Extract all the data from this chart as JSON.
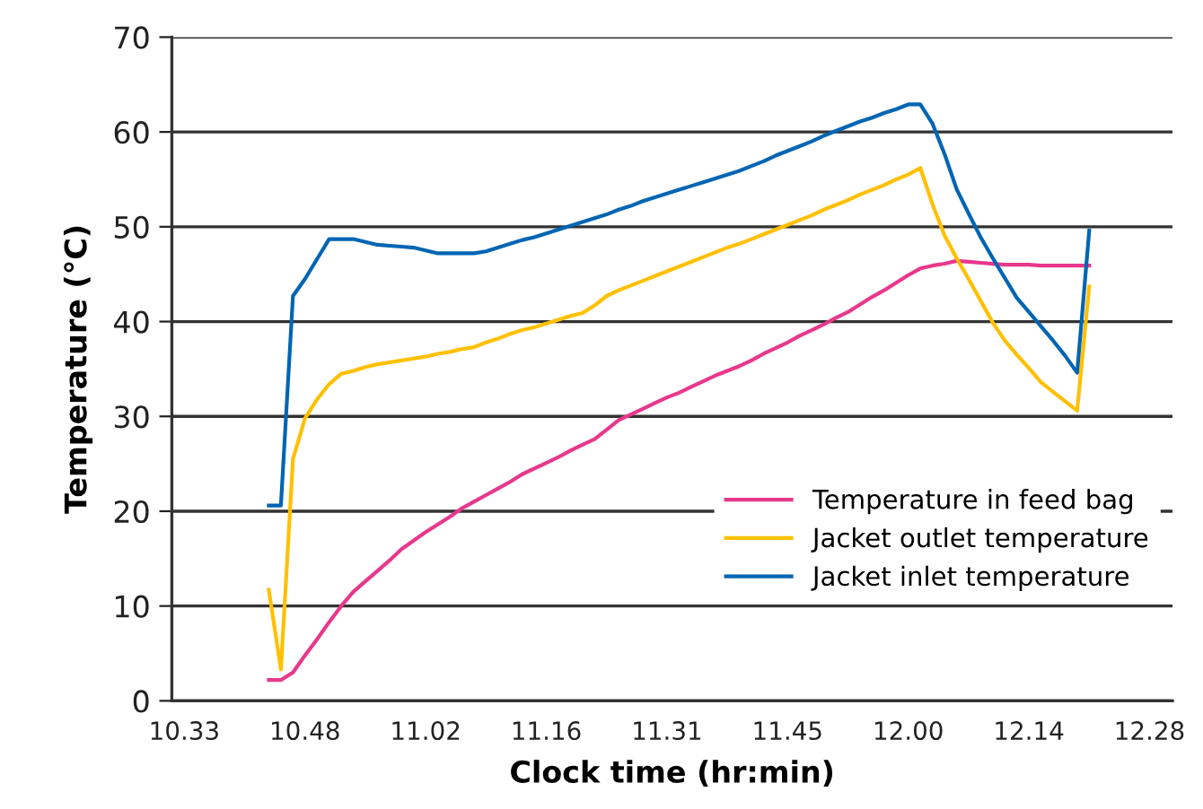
{
  "chart_data": {
    "type": "line",
    "xlabel": "Clock time (hr:min)",
    "ylabel": "Temperature (°C)",
    "categories": [
      "10.33",
      null,
      null,
      null,
      null,
      null,
      null,
      null,
      null,
      null,
      "10.48",
      null,
      null,
      null,
      null,
      null,
      null,
      null,
      null,
      null,
      "11.02",
      null,
      null,
      null,
      null,
      null,
      null,
      null,
      null,
      null,
      "11.16",
      null,
      null,
      null,
      null,
      null,
      null,
      null,
      null,
      null,
      "11.31",
      null,
      null,
      null,
      null,
      null,
      null,
      null,
      null,
      null,
      "11.45",
      null,
      null,
      null,
      null,
      null,
      null,
      null,
      null,
      null,
      "12.00",
      null,
      null,
      null,
      null,
      null,
      null,
      null,
      null,
      null,
      "12.14",
      null,
      null,
      null,
      null,
      null,
      null,
      null,
      null,
      null,
      "12.28",
      null,
      null
    ],
    "ylim": [
      0,
      70
    ],
    "yticks": [
      0,
      10,
      20,
      30,
      40,
      50,
      60,
      70
    ],
    "grid": "y",
    "legend": "lower right",
    "marker": "none",
    "line_style": "solid",
    "series": [
      {
        "name": "Temperature in feed bag",
        "color": "#e8388c",
        "values": [
          null,
          null,
          null,
          null,
          null,
          null,
          null,
          2.2,
          2.2,
          3.0,
          4.8,
          6.5,
          8.3,
          10.0,
          11.5,
          12.6,
          13.7,
          14.8,
          16.0,
          16.9,
          17.8,
          18.6,
          19.4,
          20.3,
          21.0,
          21.7,
          22.4,
          23.1,
          23.9,
          24.5,
          25.1,
          25.7,
          26.4,
          27.0,
          27.6,
          28.6,
          29.6,
          30.2,
          30.8,
          31.4,
          32.0,
          32.5,
          33.1,
          33.7,
          34.3,
          34.8,
          35.3,
          35.9,
          36.6,
          37.2,
          37.8,
          38.5,
          39.1,
          39.7,
          40.4,
          41.0,
          41.8,
          42.6,
          43.3,
          44.1,
          44.9,
          45.6,
          45.9,
          46.1,
          46.4,
          46.3,
          46.2,
          46.1,
          46.0,
          46.0,
          46.0,
          45.9,
          45.9,
          45.9,
          45.9,
          45.9,
          null,
          null,
          null,
          null,
          null,
          null,
          null
        ]
      },
      {
        "name": "Jacket outlet temperature",
        "color": "#ffc000",
        "values": [
          null,
          null,
          null,
          null,
          null,
          null,
          null,
          11.7,
          3.3,
          25.5,
          29.8,
          31.8,
          33.4,
          34.5,
          34.8,
          35.2,
          35.5,
          35.7,
          35.9,
          36.1,
          36.3,
          36.6,
          36.8,
          37.1,
          37.3,
          37.8,
          38.2,
          38.7,
          39.1,
          39.4,
          39.8,
          40.2,
          40.6,
          40.9,
          41.7,
          42.7,
          43.3,
          43.8,
          44.3,
          44.8,
          45.3,
          45.8,
          46.3,
          46.8,
          47.3,
          47.8,
          48.2,
          48.7,
          49.2,
          49.7,
          50.2,
          50.7,
          51.2,
          51.8,
          52.3,
          52.8,
          53.4,
          53.9,
          54.4,
          55.0,
          55.5,
          56.2,
          52.4,
          49.1,
          46.7,
          44.5,
          42.2,
          39.9,
          38.0,
          36.5,
          35.1,
          33.6,
          32.6,
          31.6,
          30.6,
          43.7,
          null,
          null,
          null,
          null,
          null,
          null,
          null
        ]
      },
      {
        "name": "Jacket inlet temperature",
        "color": "#0065b3",
        "values": [
          null,
          null,
          null,
          null,
          null,
          null,
          null,
          20.6,
          20.6,
          42.7,
          44.5,
          46.6,
          48.7,
          48.7,
          48.7,
          48.4,
          48.1,
          48.0,
          47.9,
          47.8,
          47.5,
          47.2,
          47.2,
          47.2,
          47.2,
          47.4,
          47.8,
          48.2,
          48.6,
          48.9,
          49.3,
          49.7,
          50.1,
          50.5,
          50.9,
          51.3,
          51.8,
          52.2,
          52.7,
          53.1,
          53.5,
          53.9,
          54.3,
          54.7,
          55.1,
          55.5,
          55.9,
          56.4,
          56.9,
          57.5,
          58.0,
          58.5,
          59.0,
          59.6,
          60.1,
          60.6,
          61.1,
          61.5,
          62.0,
          62.4,
          62.9,
          62.9,
          60.9,
          57.7,
          54.0,
          51.4,
          48.9,
          46.7,
          44.6,
          42.5,
          41.0,
          39.5,
          38.0,
          36.4,
          34.6,
          49.6,
          null,
          null,
          null,
          null,
          null,
          null,
          null
        ]
      }
    ]
  }
}
